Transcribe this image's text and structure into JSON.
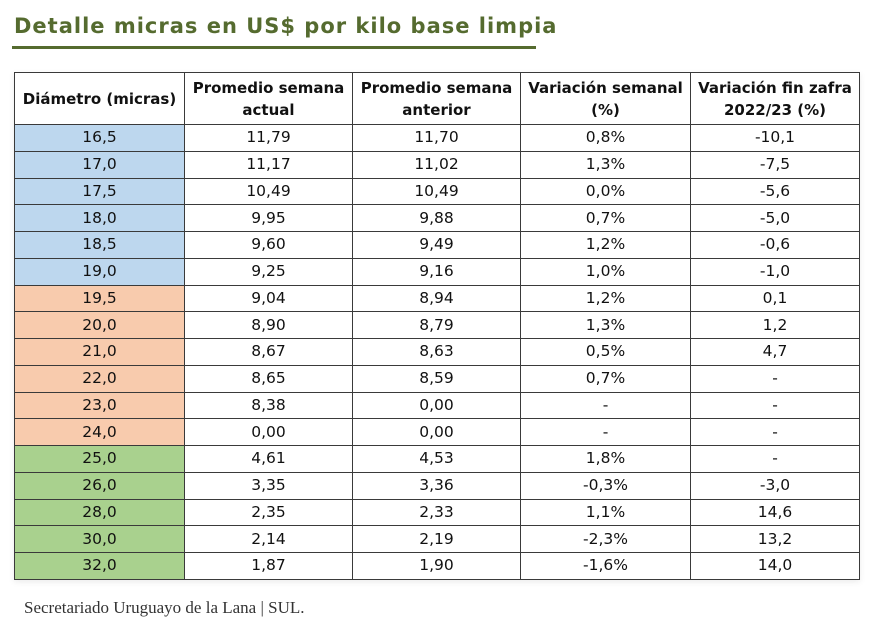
{
  "title": "Detalle micras en US$ por kilo base limpia",
  "colors": {
    "title": "#556b2f",
    "blue": "#bdd7ee",
    "orange": "#f8cbad",
    "green": "#a9d18e"
  },
  "table": {
    "headers": [
      "Diámetro (micras)",
      "Promedio semana actual",
      "Promedio semana anterior",
      "Variación semanal (%)",
      "Variación fin zafra 2022/23 (%)"
    ],
    "rows": [
      {
        "group": "blue",
        "cells": [
          "16,5",
          "11,79",
          "11,70",
          "0,8%",
          "-10,1"
        ]
      },
      {
        "group": "blue",
        "cells": [
          "17,0",
          "11,17",
          "11,02",
          "1,3%",
          "-7,5"
        ]
      },
      {
        "group": "blue",
        "cells": [
          "17,5",
          "10,49",
          "10,49",
          "0,0%",
          "-5,6"
        ]
      },
      {
        "group": "blue",
        "cells": [
          "18,0",
          "9,95",
          "9,88",
          "0,7%",
          "-5,0"
        ]
      },
      {
        "group": "blue",
        "cells": [
          "18,5",
          "9,60",
          "9,49",
          "1,2%",
          "-0,6"
        ]
      },
      {
        "group": "blue",
        "cells": [
          "19,0",
          "9,25",
          "9,16",
          "1,0%",
          "-1,0"
        ]
      },
      {
        "group": "orange",
        "cells": [
          "19,5",
          "9,04",
          "8,94",
          "1,2%",
          "0,1"
        ]
      },
      {
        "group": "orange",
        "cells": [
          "20,0",
          "8,90",
          "8,79",
          "1,3%",
          "1,2"
        ]
      },
      {
        "group": "orange",
        "cells": [
          "21,0",
          "8,67",
          "8,63",
          "0,5%",
          "4,7"
        ]
      },
      {
        "group": "orange",
        "cells": [
          "22,0",
          "8,65",
          "8,59",
          "0,7%",
          "-"
        ]
      },
      {
        "group": "orange",
        "cells": [
          "23,0",
          "8,38",
          "0,00",
          "-",
          "-"
        ]
      },
      {
        "group": "orange",
        "cells": [
          "24,0",
          "0,00",
          "0,00",
          "-",
          "-"
        ]
      },
      {
        "group": "green",
        "cells": [
          "25,0",
          "4,61",
          "4,53",
          "1,8%",
          "-"
        ]
      },
      {
        "group": "green",
        "cells": [
          "26,0",
          "3,35",
          "3,36",
          "-0,3%",
          "-3,0"
        ]
      },
      {
        "group": "green",
        "cells": [
          "28,0",
          "2,35",
          "2,33",
          "1,1%",
          "14,6"
        ]
      },
      {
        "group": "green",
        "cells": [
          "30,0",
          "2,14",
          "2,19",
          "-2,3%",
          "13,2"
        ]
      },
      {
        "group": "green",
        "cells": [
          "32,0",
          "1,87",
          "1,90",
          "-1,6%",
          "14,0"
        ]
      }
    ]
  },
  "source": "Secretariado Uruguayo de la Lana | SUL."
}
